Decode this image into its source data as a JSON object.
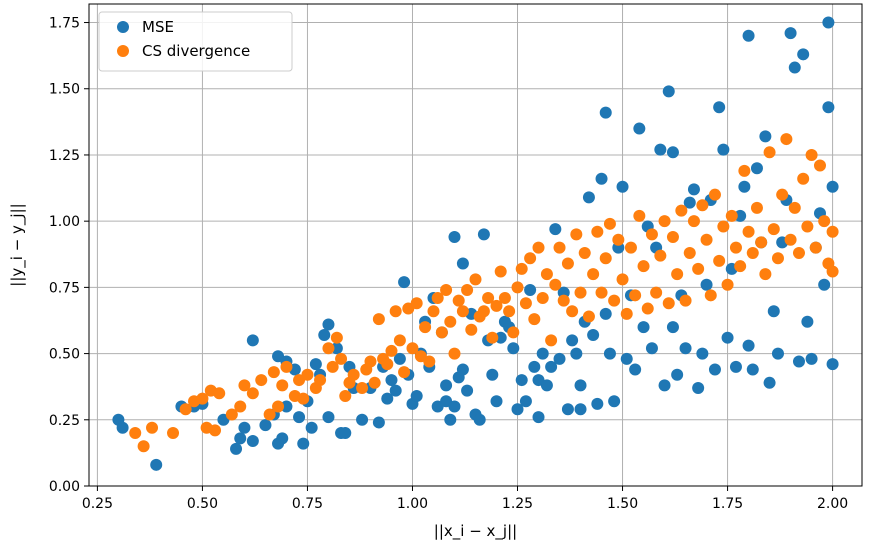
{
  "chart_data": {
    "type": "scatter",
    "title": "",
    "xlabel": "||x_i − x_j||",
    "ylabel": "||y_i − y_j||",
    "xlim": [
      0.23,
      2.07
    ],
    "ylim": [
      0.0,
      1.82
    ],
    "x_ticks": [
      "0.25",
      "0.50",
      "0.75",
      "1.00",
      "1.25",
      "1.50",
      "1.75",
      "2.00"
    ],
    "y_ticks": [
      "0.00",
      "0.25",
      "0.50",
      "0.75",
      "1.00",
      "1.25",
      "1.50",
      "1.75"
    ],
    "grid": true,
    "legend_position": "top-left",
    "series": [
      {
        "name": "MSE",
        "color": "#1f77b4",
        "points": [
          [
            0.3,
            0.25
          ],
          [
            0.31,
            0.22
          ],
          [
            0.39,
            0.08
          ],
          [
            0.45,
            0.3
          ],
          [
            0.48,
            0.3
          ],
          [
            0.5,
            0.31
          ],
          [
            0.55,
            0.25
          ],
          [
            0.58,
            0.14
          ],
          [
            0.59,
            0.18
          ],
          [
            0.6,
            0.22
          ],
          [
            0.62,
            0.55
          ],
          [
            0.62,
            0.17
          ],
          [
            0.65,
            0.23
          ],
          [
            0.67,
            0.27
          ],
          [
            0.68,
            0.16
          ],
          [
            0.68,
            0.49
          ],
          [
            0.69,
            0.18
          ],
          [
            0.7,
            0.47
          ],
          [
            0.7,
            0.3
          ],
          [
            0.72,
            0.44
          ],
          [
            0.73,
            0.26
          ],
          [
            0.74,
            0.16
          ],
          [
            0.75,
            0.32
          ],
          [
            0.76,
            0.22
          ],
          [
            0.77,
            0.46
          ],
          [
            0.78,
            0.42
          ],
          [
            0.79,
            0.57
          ],
          [
            0.8,
            0.61
          ],
          [
            0.8,
            0.26
          ],
          [
            0.82,
            0.52
          ],
          [
            0.83,
            0.2
          ],
          [
            0.84,
            0.2
          ],
          [
            0.85,
            0.45
          ],
          [
            0.86,
            0.37
          ],
          [
            0.88,
            0.25
          ],
          [
            0.9,
            0.37
          ],
          [
            0.92,
            0.24
          ],
          [
            0.93,
            0.45
          ],
          [
            0.94,
            0.33
          ],
          [
            0.95,
            0.4
          ],
          [
            0.96,
            0.36
          ],
          [
            0.97,
            0.48
          ],
          [
            0.98,
            0.77
          ],
          [
            0.99,
            0.42
          ],
          [
            1.0,
            0.31
          ],
          [
            1.01,
            0.34
          ],
          [
            1.02,
            0.5
          ],
          [
            1.03,
            0.62
          ],
          [
            1.04,
            0.45
          ],
          [
            1.05,
            0.71
          ],
          [
            1.06,
            0.3
          ],
          [
            1.07,
            0.58
          ],
          [
            1.08,
            0.38
          ],
          [
            1.08,
            0.32
          ],
          [
            1.09,
            0.25
          ],
          [
            1.1,
            0.3
          ],
          [
            1.1,
            0.94
          ],
          [
            1.11,
            0.41
          ],
          [
            1.12,
            0.84
          ],
          [
            1.12,
            0.44
          ],
          [
            1.13,
            0.36
          ],
          [
            1.14,
            0.65
          ],
          [
            1.15,
            0.27
          ],
          [
            1.16,
            0.25
          ],
          [
            1.17,
            0.95
          ],
          [
            1.18,
            0.55
          ],
          [
            1.19,
            0.42
          ],
          [
            1.2,
            0.32
          ],
          [
            1.21,
            0.56
          ],
          [
            1.22,
            0.62
          ],
          [
            1.23,
            0.6
          ],
          [
            1.24,
            0.52
          ],
          [
            1.25,
            0.29
          ],
          [
            1.26,
            0.4
          ],
          [
            1.27,
            0.32
          ],
          [
            1.28,
            0.74
          ],
          [
            1.29,
            0.45
          ],
          [
            1.3,
            0.26
          ],
          [
            1.3,
            0.4
          ],
          [
            1.31,
            0.5
          ],
          [
            1.32,
            0.38
          ],
          [
            1.33,
            0.45
          ],
          [
            1.34,
            0.97
          ],
          [
            1.35,
            0.48
          ],
          [
            1.36,
            0.73
          ],
          [
            1.37,
            0.29
          ],
          [
            1.38,
            0.55
          ],
          [
            1.39,
            0.5
          ],
          [
            1.4,
            0.29
          ],
          [
            1.4,
            0.38
          ],
          [
            1.41,
            0.62
          ],
          [
            1.42,
            1.09
          ],
          [
            1.43,
            0.57
          ],
          [
            1.44,
            0.31
          ],
          [
            1.45,
            1.16
          ],
          [
            1.46,
            1.41
          ],
          [
            1.46,
            0.65
          ],
          [
            1.47,
            0.5
          ],
          [
            1.48,
            0.32
          ],
          [
            1.49,
            0.9
          ],
          [
            1.5,
            1.13
          ],
          [
            1.51,
            0.48
          ],
          [
            1.52,
            0.72
          ],
          [
            1.53,
            0.44
          ],
          [
            1.54,
            1.35
          ],
          [
            1.55,
            0.6
          ],
          [
            1.56,
            0.98
          ],
          [
            1.57,
            0.52
          ],
          [
            1.58,
            0.9
          ],
          [
            1.59,
            1.27
          ],
          [
            1.6,
            0.38
          ],
          [
            1.61,
            1.49
          ],
          [
            1.62,
            1.26
          ],
          [
            1.62,
            0.6
          ],
          [
            1.63,
            0.42
          ],
          [
            1.64,
            0.72
          ],
          [
            1.65,
            0.52
          ],
          [
            1.66,
            1.07
          ],
          [
            1.67,
            1.12
          ],
          [
            1.68,
            0.37
          ],
          [
            1.69,
            0.5
          ],
          [
            1.7,
            0.76
          ],
          [
            1.71,
            1.08
          ],
          [
            1.72,
            0.44
          ],
          [
            1.73,
            1.43
          ],
          [
            1.74,
            1.27
          ],
          [
            1.75,
            0.56
          ],
          [
            1.76,
            0.82
          ],
          [
            1.77,
            0.45
          ],
          [
            1.78,
            1.02
          ],
          [
            1.79,
            1.13
          ],
          [
            1.8,
            1.7
          ],
          [
            1.8,
            0.53
          ],
          [
            1.81,
            0.44
          ],
          [
            1.82,
            1.2
          ],
          [
            1.83,
            0.92
          ],
          [
            1.84,
            1.32
          ],
          [
            1.85,
            0.39
          ],
          [
            1.86,
            0.66
          ],
          [
            1.87,
            0.5
          ],
          [
            1.88,
            0.92
          ],
          [
            1.89,
            1.08
          ],
          [
            1.9,
            1.71
          ],
          [
            1.91,
            1.58
          ],
          [
            1.92,
            0.47
          ],
          [
            1.93,
            1.63
          ],
          [
            1.94,
            0.62
          ],
          [
            1.95,
            0.48
          ],
          [
            1.96,
            0.9
          ],
          [
            1.97,
            1.03
          ],
          [
            1.98,
            0.76
          ],
          [
            1.99,
            1.75
          ],
          [
            1.99,
            1.43
          ],
          [
            2.0,
            1.13
          ],
          [
            2.0,
            0.46
          ]
        ]
      },
      {
        "name": "CS divergence",
        "color": "#ff7f0e",
        "points": [
          [
            0.34,
            0.2
          ],
          [
            0.36,
            0.15
          ],
          [
            0.38,
            0.22
          ],
          [
            0.43,
            0.2
          ],
          [
            0.46,
            0.29
          ],
          [
            0.48,
            0.32
          ],
          [
            0.5,
            0.33
          ],
          [
            0.51,
            0.22
          ],
          [
            0.52,
            0.36
          ],
          [
            0.53,
            0.21
          ],
          [
            0.54,
            0.35
          ],
          [
            0.57,
            0.27
          ],
          [
            0.59,
            0.3
          ],
          [
            0.6,
            0.38
          ],
          [
            0.62,
            0.35
          ],
          [
            0.64,
            0.4
          ],
          [
            0.66,
            0.27
          ],
          [
            0.67,
            0.43
          ],
          [
            0.68,
            0.3
          ],
          [
            0.69,
            0.38
          ],
          [
            0.7,
            0.45
          ],
          [
            0.72,
            0.34
          ],
          [
            0.73,
            0.4
          ],
          [
            0.74,
            0.33
          ],
          [
            0.75,
            0.42
          ],
          [
            0.77,
            0.37
          ],
          [
            0.78,
            0.4
          ],
          [
            0.8,
            0.52
          ],
          [
            0.81,
            0.45
          ],
          [
            0.82,
            0.56
          ],
          [
            0.83,
            0.48
          ],
          [
            0.84,
            0.34
          ],
          [
            0.85,
            0.39
          ],
          [
            0.86,
            0.42
          ],
          [
            0.88,
            0.37
          ],
          [
            0.89,
            0.44
          ],
          [
            0.9,
            0.47
          ],
          [
            0.91,
            0.39
          ],
          [
            0.92,
            0.63
          ],
          [
            0.93,
            0.48
          ],
          [
            0.94,
            0.46
          ],
          [
            0.95,
            0.51
          ],
          [
            0.96,
            0.66
          ],
          [
            0.97,
            0.55
          ],
          [
            0.98,
            0.43
          ],
          [
            0.99,
            0.67
          ],
          [
            1.0,
            0.52
          ],
          [
            1.01,
            0.69
          ],
          [
            1.02,
            0.49
          ],
          [
            1.03,
            0.6
          ],
          [
            1.04,
            0.47
          ],
          [
            1.05,
            0.66
          ],
          [
            1.06,
            0.71
          ],
          [
            1.07,
            0.58
          ],
          [
            1.08,
            0.74
          ],
          [
            1.09,
            0.62
          ],
          [
            1.1,
            0.5
          ],
          [
            1.11,
            0.7
          ],
          [
            1.12,
            0.66
          ],
          [
            1.13,
            0.74
          ],
          [
            1.14,
            0.59
          ],
          [
            1.15,
            0.78
          ],
          [
            1.16,
            0.64
          ],
          [
            1.17,
            0.66
          ],
          [
            1.18,
            0.71
          ],
          [
            1.19,
            0.56
          ],
          [
            1.2,
            0.68
          ],
          [
            1.21,
            0.81
          ],
          [
            1.22,
            0.71
          ],
          [
            1.23,
            0.66
          ],
          [
            1.24,
            0.58
          ],
          [
            1.25,
            0.75
          ],
          [
            1.26,
            0.82
          ],
          [
            1.27,
            0.69
          ],
          [
            1.28,
            0.86
          ],
          [
            1.29,
            0.63
          ],
          [
            1.3,
            0.9
          ],
          [
            1.31,
            0.71
          ],
          [
            1.32,
            0.8
          ],
          [
            1.33,
            0.55
          ],
          [
            1.34,
            0.76
          ],
          [
            1.35,
            0.9
          ],
          [
            1.36,
            0.7
          ],
          [
            1.37,
            0.84
          ],
          [
            1.38,
            0.66
          ],
          [
            1.39,
            0.95
          ],
          [
            1.4,
            0.73
          ],
          [
            1.41,
            0.88
          ],
          [
            1.42,
            0.64
          ],
          [
            1.43,
            0.8
          ],
          [
            1.44,
            0.96
          ],
          [
            1.45,
            0.73
          ],
          [
            1.46,
            0.86
          ],
          [
            1.47,
            0.99
          ],
          [
            1.48,
            0.7
          ],
          [
            1.49,
            0.93
          ],
          [
            1.5,
            0.78
          ],
          [
            1.51,
            0.65
          ],
          [
            1.52,
            0.9
          ],
          [
            1.53,
            0.72
          ],
          [
            1.54,
            1.02
          ],
          [
            1.55,
            0.83
          ],
          [
            1.56,
            0.67
          ],
          [
            1.57,
            0.95
          ],
          [
            1.58,
            0.73
          ],
          [
            1.59,
            0.87
          ],
          [
            1.6,
            1.0
          ],
          [
            1.61,
            0.69
          ],
          [
            1.62,
            0.94
          ],
          [
            1.63,
            0.8
          ],
          [
            1.64,
            1.04
          ],
          [
            1.65,
            0.7
          ],
          [
            1.66,
            0.88
          ],
          [
            1.67,
            1.0
          ],
          [
            1.68,
            0.82
          ],
          [
            1.69,
            1.06
          ],
          [
            1.7,
            0.93
          ],
          [
            1.71,
            0.72
          ],
          [
            1.72,
            1.1
          ],
          [
            1.73,
            0.85
          ],
          [
            1.74,
            0.98
          ],
          [
            1.75,
            0.76
          ],
          [
            1.76,
            1.02
          ],
          [
            1.77,
            0.9
          ],
          [
            1.78,
            0.83
          ],
          [
            1.79,
            1.19
          ],
          [
            1.8,
            0.96
          ],
          [
            1.81,
            0.88
          ],
          [
            1.82,
            1.05
          ],
          [
            1.83,
            0.92
          ],
          [
            1.84,
            0.8
          ],
          [
            1.85,
            1.26
          ],
          [
            1.86,
            0.97
          ],
          [
            1.87,
            0.86
          ],
          [
            1.88,
            1.1
          ],
          [
            1.89,
            1.31
          ],
          [
            1.9,
            0.93
          ],
          [
            1.91,
            1.05
          ],
          [
            1.92,
            0.88
          ],
          [
            1.93,
            1.16
          ],
          [
            1.94,
            0.98
          ],
          [
            1.95,
            1.25
          ],
          [
            1.96,
            0.9
          ],
          [
            1.97,
            1.21
          ],
          [
            1.98,
            1.0
          ],
          [
            1.99,
            0.84
          ],
          [
            2.0,
            0.96
          ],
          [
            2.0,
            0.81
          ]
        ]
      }
    ]
  }
}
